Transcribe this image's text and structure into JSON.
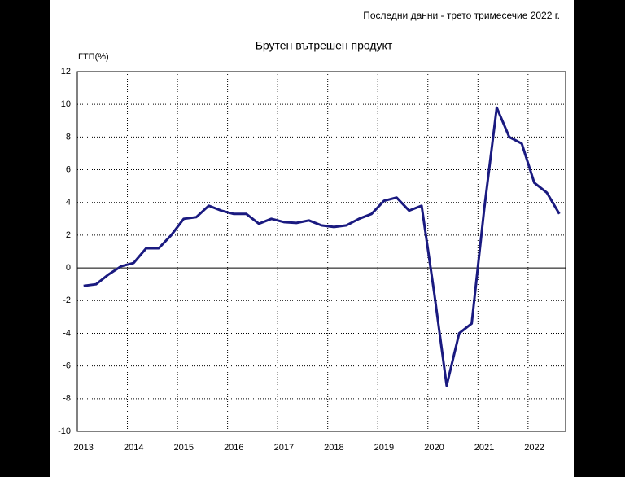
{
  "chart_data": {
    "type": "line",
    "title": "Брутен вътрешен продукт",
    "subtitle": "Последни данни - трето тримесечие 2022 г.",
    "y_label": "ГТП(%)",
    "categories": [
      "2013",
      null,
      null,
      null,
      "2014",
      null,
      null,
      null,
      "2015",
      null,
      null,
      null,
      "2016",
      null,
      null,
      null,
      "2017",
      null,
      null,
      null,
      "2018",
      null,
      null,
      null,
      "2019",
      null,
      null,
      null,
      "2020",
      null,
      null,
      null,
      "2021",
      null,
      null,
      null,
      "2022",
      null,
      null
    ],
    "series": [
      {
        "name": "ГТП",
        "color": "#1a1a80",
        "values": [
          -1.1,
          -1.0,
          -0.4,
          0.1,
          0.3,
          1.2,
          1.2,
          2.0,
          3.0,
          3.1,
          3.8,
          3.5,
          3.3,
          3.3,
          2.7,
          3.0,
          2.8,
          2.75,
          2.9,
          2.6,
          2.5,
          2.6,
          3.0,
          3.3,
          4.1,
          4.3,
          3.5,
          3.8,
          -1.5,
          -7.2,
          -4.0,
          -3.4,
          3.6,
          9.8,
          8.0,
          7.6,
          5.2,
          4.6,
          3.3
        ]
      }
    ],
    "ylim": [
      -10,
      12
    ],
    "yticks": [
      -10,
      -8,
      -6,
      -4,
      -2,
      0,
      2,
      4,
      6,
      8,
      10,
      12
    ],
    "grid": true
  }
}
